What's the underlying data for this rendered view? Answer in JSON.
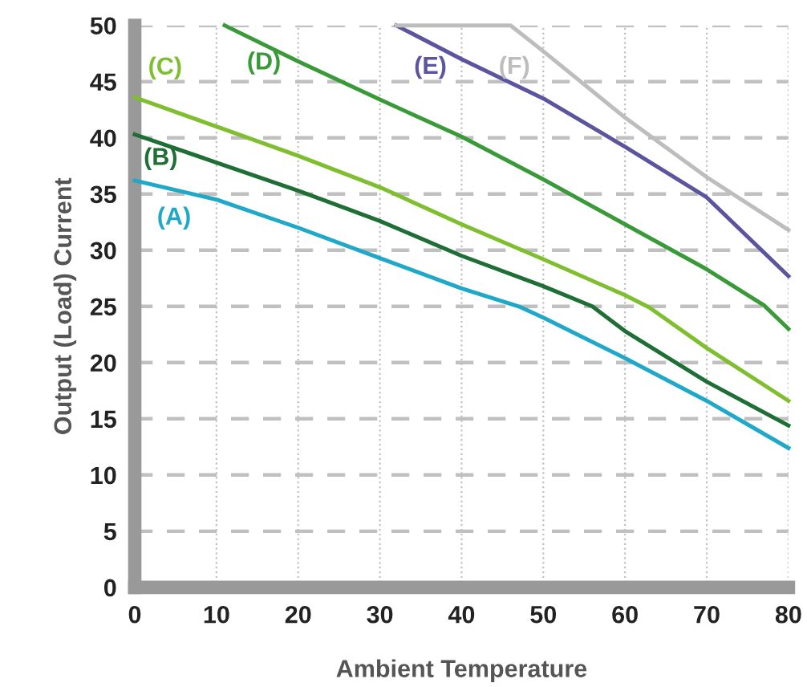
{
  "chart_data": {
    "type": "line",
    "xlabel": "Ambient Temperature",
    "ylabel": "Output (Load) Current",
    "xlim": [
      0,
      80
    ],
    "ylim": [
      0,
      50
    ],
    "xticks": [
      0,
      10,
      20,
      30,
      40,
      50,
      60,
      70,
      80
    ],
    "yticks": [
      0,
      5,
      10,
      15,
      20,
      25,
      30,
      35,
      40,
      45,
      50
    ],
    "grid": true,
    "legend": false,
    "marker": "none",
    "line_style": "solid",
    "series": [
      {
        "name": "(A)",
        "color": "#1fa8c8",
        "x": [
          0,
          10,
          20,
          30,
          40,
          47,
          50,
          60,
          70,
          80
        ],
        "values": [
          36.2,
          34.5,
          32,
          29.3,
          26.6,
          25,
          24,
          20.4,
          16.6,
          12.4
        ]
      },
      {
        "name": "(B)",
        "color": "#1e6e35",
        "x": [
          0,
          10,
          20,
          30,
          40,
          50,
          56,
          60,
          70,
          80
        ],
        "values": [
          40.3,
          37.8,
          35.3,
          32.6,
          29.5,
          26.8,
          25,
          22.8,
          18.3,
          14.4
        ]
      },
      {
        "name": "(C)",
        "color": "#7fbf2f",
        "x": [
          0,
          10,
          20,
          30,
          40,
          50,
          60,
          63,
          70,
          80
        ],
        "values": [
          43.6,
          41,
          38.4,
          35.6,
          32.3,
          29.2,
          26,
          24.9,
          21.3,
          16.6
        ]
      },
      {
        "name": "(D)",
        "color": "#3a9a3a",
        "x": [
          11,
          20,
          30,
          40,
          50,
          60,
          70,
          77,
          80
        ],
        "values": [
          50,
          46.8,
          43.4,
          40.1,
          36.3,
          32.3,
          28.3,
          25.1,
          23
        ]
      },
      {
        "name": "(E)",
        "color": "#5b55a0",
        "x": [
          32,
          40,
          50,
          60,
          70,
          80
        ],
        "values": [
          50,
          47,
          43.5,
          39.2,
          34.7,
          27.7
        ]
      },
      {
        "name": "(F)",
        "color": "#bdbdbd",
        "x": [
          32,
          46,
          50,
          60,
          70,
          80
        ],
        "values": [
          50,
          50,
          47.7,
          41.8,
          36.5,
          31.8
        ]
      }
    ]
  }
}
